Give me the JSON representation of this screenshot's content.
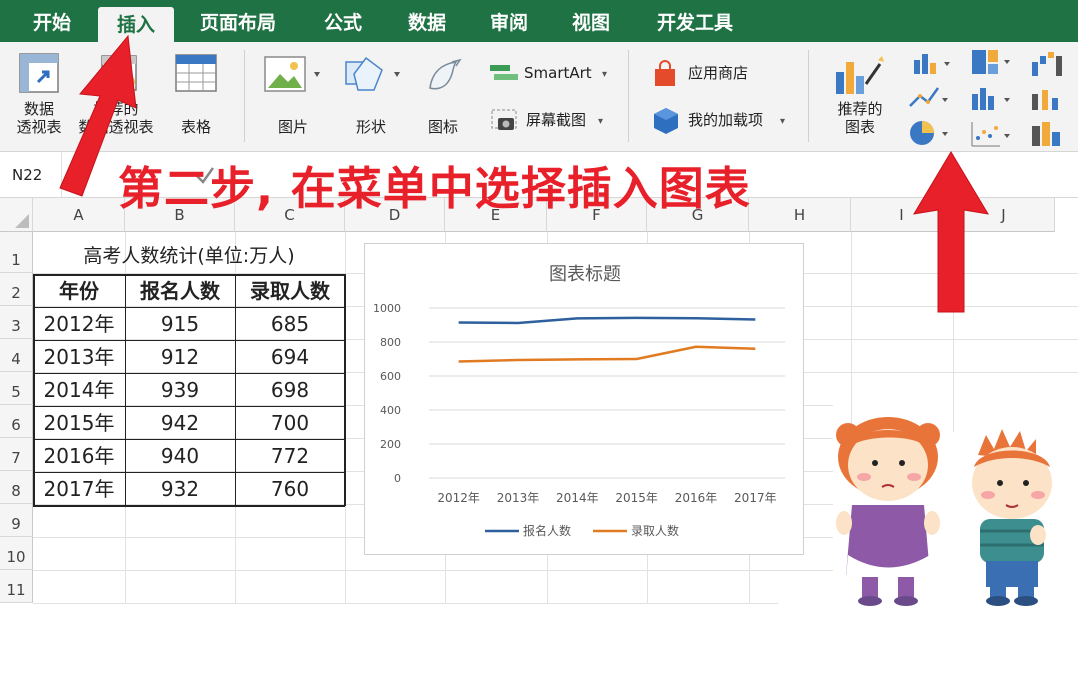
{
  "ribbon_tabs": [
    {
      "label": "开始"
    },
    {
      "label": "插入"
    },
    {
      "label": "页面布局"
    },
    {
      "label": "公式"
    },
    {
      "label": "数据"
    },
    {
      "label": "审阅"
    },
    {
      "label": "视图"
    },
    {
      "label": "开发工具"
    }
  ],
  "ribbon": {
    "pivot_table_l1": "数据",
    "pivot_table_l2": "透视表",
    "recommended_pivot_l1": "推荐的",
    "recommended_pivot_l2": "数据透视表",
    "table": "表格",
    "picture": "图片",
    "shapes": "形状",
    "icons": "图标",
    "smartart": "SmartArt",
    "screenshot": "屏幕截图",
    "app_store": "应用商店",
    "my_addins": "我的加载项",
    "recommended_charts_l1": "推荐的",
    "recommended_charts_l2": "图表"
  },
  "name_box": "N22",
  "instruction": "第二步, 在菜单中选择插入图表",
  "columns": [
    "A",
    "B",
    "C",
    "D",
    "E",
    "F",
    "G",
    "H",
    "I",
    "J"
  ],
  "rows": [
    "1",
    "2",
    "3",
    "4",
    "5",
    "6",
    "7",
    "8",
    "9",
    "10",
    "11"
  ],
  "sheet": {
    "title": "高考人数统计(单位:万人)",
    "headers": [
      "年份",
      "报名人数",
      "录取人数"
    ],
    "data": [
      [
        "2012年",
        "915",
        "685"
      ],
      [
        "2013年",
        "912",
        "694"
      ],
      [
        "2014年",
        "939",
        "698"
      ],
      [
        "2015年",
        "942",
        "700"
      ],
      [
        "2016年",
        "940",
        "772"
      ],
      [
        "2017年",
        "932",
        "760"
      ]
    ]
  },
  "colors": {
    "ribbon_green": "#1f7244",
    "annotation_red": "#e8202a",
    "series_blue": "#2e5f9e",
    "series_orange": "#e07b22"
  },
  "chart_data": {
    "type": "line",
    "title": "图表标题",
    "categories": [
      "2012年",
      "2013年",
      "2014年",
      "2015年",
      "2016年",
      "2017年"
    ],
    "series": [
      {
        "name": "报名人数",
        "values": [
          915,
          912,
          939,
          942,
          940,
          932
        ]
      },
      {
        "name": "录取人数",
        "values": [
          685,
          694,
          698,
          700,
          772,
          760
        ]
      }
    ],
    "ylim": [
      0,
      1000
    ],
    "yticks": [
      "0",
      "200",
      "400",
      "600",
      "800",
      "1000"
    ],
    "grid": true,
    "legend": "bottom"
  }
}
